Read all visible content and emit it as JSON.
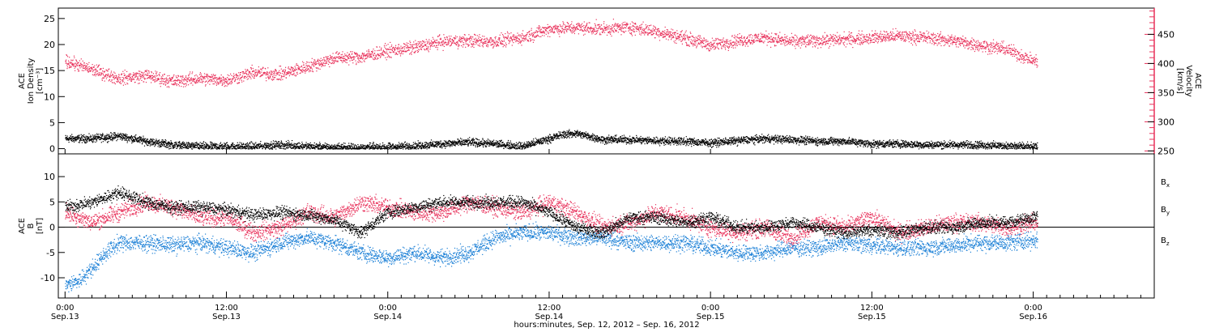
{
  "colors": {
    "density": "#000000",
    "velocity": "#e8305a",
    "bx": "#000000",
    "by": "#1a7fd6",
    "bz": "#e8305a",
    "axis": "#000000"
  },
  "xaxis": {
    "title": "hours:minutes, Sep. 12, 2012 – Sep. 16, 2012",
    "range_hours": [
      -0.5,
      81
    ],
    "ticks": [
      {
        "hour": 0,
        "time": "0:00",
        "date": "Sep.13"
      },
      {
        "hour": 12,
        "time": "12:00",
        "date": "Sep.13"
      },
      {
        "hour": 24,
        "time": "0:00",
        "date": "Sep.14"
      },
      {
        "hour": 36,
        "time": "12:00",
        "date": "Sep.14"
      },
      {
        "hour": 48,
        "time": "0:00",
        "date": "Sep.15"
      },
      {
        "hour": 60,
        "time": "12:00",
        "date": "Sep.15"
      },
      {
        "hour": 72,
        "time": "0:00",
        "date": "Sep.16"
      }
    ]
  },
  "chart_data": [
    {
      "type": "scatter",
      "panel": "top",
      "left_axis": {
        "label_lines": [
          "ACE",
          "Ion Density",
          "[cm⁻³]"
        ],
        "ylim": [
          -1,
          27
        ],
        "ticks": [
          0,
          5,
          10,
          15,
          20,
          25
        ]
      },
      "right_axis": {
        "label_lines": [
          "ACE",
          "Velocity",
          "[km/s]"
        ],
        "ylim": [
          245,
          495
        ],
        "ticks": [
          250,
          300,
          350,
          400,
          450
        ]
      },
      "series": [
        {
          "key": "density",
          "axis": "left",
          "x_hours": [
            0,
            2,
            4,
            5,
            6,
            8,
            10,
            12,
            14,
            16,
            18,
            20,
            22,
            24,
            26,
            28,
            30,
            32,
            34,
            36,
            37,
            38,
            40,
            42,
            44,
            46,
            48,
            50,
            52,
            54,
            56,
            58,
            60,
            62,
            64,
            66,
            68,
            70,
            72
          ],
          "y": [
            2,
            2,
            2.5,
            2,
            1.5,
            0.8,
            0.5,
            0.5,
            0.5,
            0.8,
            0.5,
            0.3,
            0.3,
            0.4,
            0.6,
            1,
            1.3,
            1,
            0.5,
            2,
            2.8,
            3,
            1.8,
            1.8,
            1.6,
            1.5,
            1.2,
            1.6,
            2,
            1.8,
            1.5,
            1.5,
            1,
            1,
            0.8,
            0.8,
            0.8,
            0.6,
            0.4
          ]
        },
        {
          "key": "velocity",
          "axis": "right",
          "x_hours": [
            0,
            2,
            4,
            6,
            8,
            10,
            12,
            14,
            16,
            18,
            20,
            22,
            24,
            26,
            28,
            30,
            32,
            34,
            36,
            38,
            40,
            42,
            44,
            46,
            48,
            50,
            52,
            54,
            56,
            58,
            60,
            62,
            64,
            66,
            68,
            70,
            72
          ],
          "y": [
            405,
            390,
            375,
            380,
            370,
            375,
            372,
            385,
            382,
            395,
            410,
            412,
            422,
            428,
            438,
            440,
            438,
            445,
            460,
            462,
            460,
            463,
            455,
            445,
            432,
            440,
            445,
            438,
            440,
            442,
            445,
            448,
            445,
            440,
            432,
            425,
            405
          ]
        }
      ]
    },
    {
      "type": "scatter",
      "panel": "bottom",
      "left_axis": {
        "label_lines": [
          "ACE",
          "B",
          "[nT]"
        ],
        "ylim": [
          -14,
          14.5
        ],
        "ticks": [
          -10,
          -5,
          0,
          5,
          10
        ]
      },
      "series": [
        {
          "key": "bx",
          "name": "Bx",
          "x_hours": [
            0,
            2,
            4,
            6,
            8,
            10,
            12,
            14,
            16,
            18,
            20,
            22,
            24,
            26,
            28,
            30,
            32,
            34,
            36,
            38,
            40,
            42,
            44,
            46,
            48,
            50,
            52,
            54,
            56,
            58,
            60,
            62,
            64,
            66,
            68,
            70,
            72
          ],
          "y": [
            4,
            5,
            7,
            5,
            4,
            4,
            3.5,
            2.5,
            3,
            2.5,
            1.5,
            -1,
            3,
            4,
            5,
            5,
            5,
            5,
            3,
            0,
            -1,
            2,
            2,
            1,
            2,
            0,
            0,
            1,
            0,
            -1,
            -0.5,
            -1,
            0,
            0,
            1,
            1,
            2
          ]
        },
        {
          "key": "by",
          "name": "By",
          "x_hours": [
            0,
            1,
            2,
            3,
            4,
            6,
            8,
            10,
            12,
            14,
            16,
            18,
            20,
            22,
            24,
            26,
            28,
            30,
            32,
            34,
            36,
            38,
            40,
            42,
            44,
            46,
            48,
            50,
            52,
            54,
            56,
            58,
            60,
            62,
            64,
            66,
            68,
            70,
            72
          ],
          "y": [
            -11.5,
            -10.5,
            -8,
            -5,
            -3,
            -3,
            -3.5,
            -3,
            -4,
            -5,
            -3,
            -2,
            -3,
            -5,
            -6,
            -5,
            -6,
            -5,
            -2,
            -1,
            -1,
            -2,
            -2,
            -3,
            -3,
            -3,
            -4,
            -5,
            -5,
            -4,
            -4,
            -3,
            -3.5,
            -4,
            -4,
            -3.5,
            -3,
            -3,
            -2.5
          ]
        },
        {
          "key": "bz",
          "name": "Bz",
          "x_hours": [
            0,
            2,
            4,
            6,
            8,
            10,
            12,
            14,
            16,
            18,
            20,
            22,
            24,
            26,
            28,
            30,
            32,
            34,
            36,
            38,
            40,
            42,
            44,
            46,
            48,
            50,
            52,
            54,
            56,
            58,
            60,
            62,
            64,
            66,
            68,
            70,
            72
          ],
          "y": [
            3,
            1,
            3,
            5,
            4,
            2,
            2,
            -1,
            0,
            3,
            2,
            5,
            4,
            3,
            3,
            5,
            4,
            3,
            5,
            3,
            0,
            1,
            3,
            2,
            0,
            -1,
            0,
            -2,
            1,
            0,
            2,
            -1,
            0,
            1,
            1,
            0,
            1
          ]
        }
      ]
    }
  ],
  "legend": {
    "bx": {
      "base": "B",
      "sub": "x"
    },
    "by": {
      "base": "B",
      "sub": "y"
    },
    "bz": {
      "base": "B",
      "sub": "z"
    }
  }
}
